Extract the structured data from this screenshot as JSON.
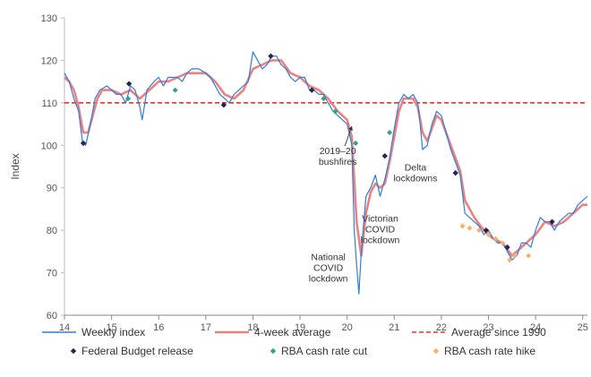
{
  "chart_data": {
    "type": "line",
    "ylabel": "Index",
    "xlim": [
      14,
      25.1
    ],
    "ylim": [
      60,
      130
    ],
    "y_ticks": [
      60,
      70,
      80,
      90,
      100,
      110,
      120,
      130
    ],
    "x_ticks": [
      "14",
      "15",
      "16",
      "17",
      "18",
      "19",
      "20",
      "21",
      "22",
      "23",
      "24",
      "25"
    ],
    "grid": false,
    "legend_position": "bottom",
    "colors": {
      "weekly": "#2e7fd6",
      "average4": "#f08080",
      "longrun": "#e8322e",
      "budget": "#2a2550",
      "cut": "#2aa58a",
      "hike": "#f5b06a"
    },
    "series": [
      {
        "name": "Weekly index",
        "style": "thin-line",
        "points": [
          [
            14.0,
            117
          ],
          [
            14.1,
            115
          ],
          [
            14.2,
            111
          ],
          [
            14.3,
            108
          ],
          [
            14.38,
            101
          ],
          [
            14.45,
            100
          ],
          [
            14.55,
            105
          ],
          [
            14.65,
            111
          ],
          [
            14.75,
            113
          ],
          [
            14.9,
            114
          ],
          [
            15.0,
            113
          ],
          [
            15.1,
            112
          ],
          [
            15.2,
            112
          ],
          [
            15.3,
            110
          ],
          [
            15.4,
            114
          ],
          [
            15.5,
            113
          ],
          [
            15.6,
            109
          ],
          [
            15.65,
            106
          ],
          [
            15.75,
            113
          ],
          [
            15.9,
            115
          ],
          [
            16.0,
            116
          ],
          [
            16.1,
            114
          ],
          [
            16.2,
            116
          ],
          [
            16.4,
            116
          ],
          [
            16.5,
            115
          ],
          [
            16.6,
            117
          ],
          [
            16.7,
            118
          ],
          [
            16.85,
            118
          ],
          [
            17.0,
            117
          ],
          [
            17.1,
            116
          ],
          [
            17.2,
            114
          ],
          [
            17.3,
            112
          ],
          [
            17.4,
            111
          ],
          [
            17.5,
            110
          ],
          [
            17.6,
            112
          ],
          [
            17.7,
            113
          ],
          [
            17.8,
            114
          ],
          [
            17.9,
            115
          ],
          [
            18.0,
            122
          ],
          [
            18.1,
            120
          ],
          [
            18.2,
            118
          ],
          [
            18.3,
            119
          ],
          [
            18.4,
            121
          ],
          [
            18.5,
            121
          ],
          [
            18.6,
            119
          ],
          [
            18.7,
            118
          ],
          [
            18.8,
            116
          ],
          [
            18.9,
            115
          ],
          [
            19.0,
            116
          ],
          [
            19.1,
            116
          ],
          [
            19.2,
            113
          ],
          [
            19.3,
            113
          ],
          [
            19.4,
            112
          ],
          [
            19.5,
            112
          ],
          [
            19.6,
            110
          ],
          [
            19.7,
            108
          ],
          [
            19.8,
            107
          ],
          [
            19.9,
            106
          ],
          [
            20.0,
            105
          ],
          [
            20.1,
            100
          ],
          [
            20.15,
            80
          ],
          [
            20.2,
            72
          ],
          [
            20.25,
            65
          ],
          [
            20.3,
            75
          ],
          [
            20.4,
            88
          ],
          [
            20.5,
            90
          ],
          [
            20.6,
            93
          ],
          [
            20.7,
            88
          ],
          [
            20.8,
            92
          ],
          [
            20.9,
            97
          ],
          [
            21.0,
            104
          ],
          [
            21.1,
            110
          ],
          [
            21.2,
            112
          ],
          [
            21.3,
            111
          ],
          [
            21.4,
            112
          ],
          [
            21.5,
            110
          ],
          [
            21.55,
            105
          ],
          [
            21.6,
            99
          ],
          [
            21.7,
            100
          ],
          [
            21.8,
            105
          ],
          [
            21.9,
            108
          ],
          [
            22.0,
            107
          ],
          [
            22.1,
            103
          ],
          [
            22.2,
            99
          ],
          [
            22.3,
            96
          ],
          [
            22.4,
            93
          ],
          [
            22.5,
            84
          ],
          [
            22.6,
            83
          ],
          [
            22.7,
            82
          ],
          [
            22.8,
            81
          ],
          [
            22.9,
            79
          ],
          [
            23.0,
            80
          ],
          [
            23.1,
            78
          ],
          [
            23.2,
            77
          ],
          [
            23.3,
            77
          ],
          [
            23.4,
            75
          ],
          [
            23.5,
            73
          ],
          [
            23.6,
            74
          ],
          [
            23.7,
            77
          ],
          [
            23.8,
            77
          ],
          [
            23.9,
            76
          ],
          [
            24.0,
            80
          ],
          [
            24.1,
            83
          ],
          [
            24.2,
            82
          ],
          [
            24.3,
            82
          ],
          [
            24.4,
            80
          ],
          [
            24.5,
            82
          ],
          [
            24.6,
            83
          ],
          [
            24.7,
            84
          ],
          [
            24.8,
            84
          ],
          [
            24.9,
            86
          ],
          [
            25.0,
            87
          ],
          [
            25.1,
            88
          ]
        ]
      },
      {
        "name": "4-week average",
        "style": "thick-line",
        "points": [
          [
            14.0,
            116
          ],
          [
            14.1,
            115
          ],
          [
            14.2,
            113
          ],
          [
            14.3,
            109
          ],
          [
            14.4,
            103
          ],
          [
            14.5,
            103
          ],
          [
            14.6,
            107
          ],
          [
            14.7,
            111
          ],
          [
            14.8,
            113
          ],
          [
            15.0,
            113
          ],
          [
            15.2,
            112
          ],
          [
            15.4,
            113
          ],
          [
            15.6,
            111
          ],
          [
            15.8,
            113
          ],
          [
            16.0,
            115
          ],
          [
            16.2,
            115
          ],
          [
            16.4,
            116
          ],
          [
            16.6,
            117
          ],
          [
            16.8,
            117
          ],
          [
            17.0,
            117
          ],
          [
            17.2,
            115
          ],
          [
            17.4,
            112
          ],
          [
            17.6,
            111
          ],
          [
            17.8,
            113
          ],
          [
            18.0,
            118
          ],
          [
            18.2,
            119
          ],
          [
            18.4,
            120
          ],
          [
            18.6,
            120
          ],
          [
            18.8,
            117
          ],
          [
            19.0,
            116
          ],
          [
            19.2,
            114
          ],
          [
            19.4,
            113
          ],
          [
            19.6,
            111
          ],
          [
            19.8,
            108
          ],
          [
            20.0,
            106
          ],
          [
            20.1,
            102
          ],
          [
            20.2,
            82
          ],
          [
            20.3,
            74
          ],
          [
            20.4,
            84
          ],
          [
            20.5,
            89
          ],
          [
            20.6,
            91
          ],
          [
            20.7,
            90
          ],
          [
            20.8,
            91
          ],
          [
            20.9,
            96
          ],
          [
            21.0,
            102
          ],
          [
            21.1,
            108
          ],
          [
            21.2,
            111
          ],
          [
            21.4,
            111
          ],
          [
            21.5,
            109
          ],
          [
            21.6,
            103
          ],
          [
            21.7,
            101
          ],
          [
            21.8,
            104
          ],
          [
            21.9,
            107
          ],
          [
            22.0,
            106
          ],
          [
            22.2,
            100
          ],
          [
            22.4,
            94
          ],
          [
            22.5,
            87
          ],
          [
            22.7,
            83
          ],
          [
            22.9,
            80
          ],
          [
            23.1,
            78
          ],
          [
            23.3,
            77
          ],
          [
            23.5,
            74
          ],
          [
            23.6,
            75
          ],
          [
            23.8,
            77
          ],
          [
            24.0,
            79
          ],
          [
            24.2,
            82
          ],
          [
            24.4,
            81
          ],
          [
            24.6,
            82
          ],
          [
            24.8,
            84
          ],
          [
            25.0,
            86
          ],
          [
            25.1,
            86
          ]
        ]
      },
      {
        "name": "Average since 1990",
        "style": "dashed",
        "value": 110
      },
      {
        "name": "Federal Budget release",
        "style": "marker",
        "points": [
          [
            14.4,
            100.5
          ],
          [
            15.37,
            114.5
          ],
          [
            17.38,
            109.5
          ],
          [
            18.38,
            121
          ],
          [
            19.25,
            113
          ],
          [
            20.8,
            97.5
          ],
          [
            22.3,
            93.5
          ],
          [
            22.95,
            80
          ],
          [
            23.4,
            76
          ],
          [
            24.35,
            82
          ]
        ]
      },
      {
        "name": "RBA cash rate cut",
        "style": "marker",
        "points": [
          [
            15.35,
            111
          ],
          [
            16.35,
            113
          ],
          [
            19.5,
            111
          ],
          [
            19.75,
            108
          ],
          [
            20.18,
            100.5
          ],
          [
            20.9,
            103
          ]
        ]
      },
      {
        "name": "RBA cash rate hike",
        "style": "marker",
        "points": [
          [
            22.45,
            81
          ],
          [
            22.6,
            80.5
          ],
          [
            22.8,
            80
          ],
          [
            23.0,
            79
          ],
          [
            23.15,
            78
          ],
          [
            23.3,
            77
          ],
          [
            23.45,
            73
          ],
          [
            23.55,
            74
          ],
          [
            23.85,
            74
          ]
        ]
      }
    ],
    "annotations": [
      {
        "lines": [
          "2019–20",
          "bushfires"
        ],
        "x": 19.8,
        "y": 98
      },
      {
        "lines": [
          "Delta",
          "lockdowns"
        ],
        "x": 21.45,
        "y": 94
      },
      {
        "lines": [
          "Victorian",
          "COVID",
          "lockdown"
        ],
        "x": 20.7,
        "y": 82
      },
      {
        "lines": [
          "National",
          "COVID",
          "lockdown"
        ],
        "x": 19.6,
        "y": 73
      }
    ],
    "legend": [
      {
        "label": "Weekly index"
      },
      {
        "label": "4-week average"
      },
      {
        "label": "Average since 1990"
      },
      {
        "label": "Federal Budget release"
      },
      {
        "label": "RBA cash rate cut"
      },
      {
        "label": "RBA cash rate hike"
      }
    ]
  }
}
